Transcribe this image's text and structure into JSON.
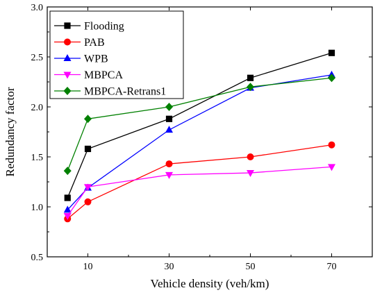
{
  "chart_data": {
    "type": "line",
    "xlabel": "Vehicle density (veh/km)",
    "ylabel": "Redundancy factor",
    "xlim": [
      0,
      80
    ],
    "ylim": [
      0.5,
      3.0
    ],
    "x_ticks": [
      10,
      30,
      50,
      70
    ],
    "y_ticks": [
      0.5,
      1.0,
      1.5,
      2.0,
      2.5,
      3.0
    ],
    "x_tick_labels": [
      "10",
      "30",
      "50",
      "70"
    ],
    "y_tick_labels": [
      "0.5",
      "1.0",
      "1.5",
      "2.0",
      "2.5",
      "3.0"
    ],
    "x": [
      5,
      10,
      30,
      50,
      70
    ],
    "legend_position": "top-left",
    "grid": false,
    "series": [
      {
        "name": "Flooding",
        "color": "#000000",
        "marker": "square",
        "values": [
          1.09,
          1.58,
          1.88,
          2.29,
          2.54
        ]
      },
      {
        "name": "PAB",
        "color": "#ff0000",
        "marker": "circle",
        "values": [
          0.88,
          1.05,
          1.43,
          1.5,
          1.62
        ]
      },
      {
        "name": "WPB",
        "color": "#0000ff",
        "marker": "triangle-up",
        "values": [
          0.97,
          1.19,
          1.77,
          2.19,
          2.32
        ]
      },
      {
        "name": "MBPCA",
        "color": "#ff00ff",
        "marker": "triangle-down",
        "values": [
          0.91,
          1.2,
          1.32,
          1.34,
          1.4
        ]
      },
      {
        "name": "MBPCA-Retrans1",
        "color": "#008000",
        "marker": "diamond",
        "values": [
          1.36,
          1.88,
          2.0,
          2.2,
          2.29
        ]
      }
    ]
  }
}
